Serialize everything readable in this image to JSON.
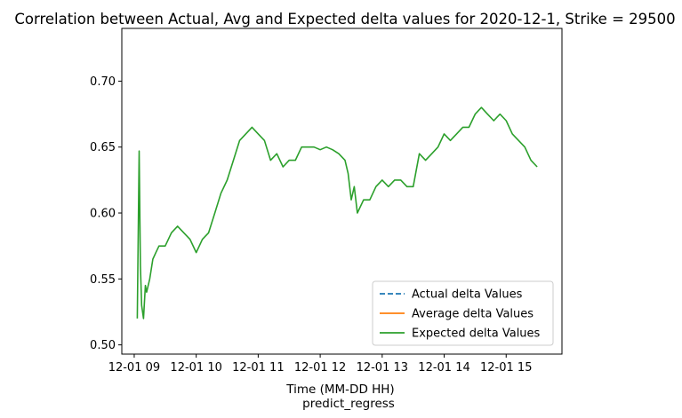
{
  "chart_data": {
    "type": "line",
    "title": "Correlation between Actual, Avg and Expected delta values for 2020-12-1, Strike = 29500",
    "xlabel": "Time (MM-DD HH)",
    "xlabel2": "predict_regress",
    "ylabel": "",
    "ylim": [
      0.493,
      0.74
    ],
    "xlim": [
      8.8,
      15.9
    ],
    "grid": false,
    "legend_position": "lower-right",
    "x_ticks": [
      {
        "value": 9,
        "label": "12-01 09"
      },
      {
        "value": 10,
        "label": "12-01 10"
      },
      {
        "value": 11,
        "label": "12-01 11"
      },
      {
        "value": 12,
        "label": "12-01 12"
      },
      {
        "value": 13,
        "label": "12-01 13"
      },
      {
        "value": 14,
        "label": "12-01 14"
      },
      {
        "value": 15,
        "label": "12-01 15"
      }
    ],
    "y_ticks": [
      {
        "value": 0.5,
        "label": "0.50"
      },
      {
        "value": 0.55,
        "label": "0.55"
      },
      {
        "value": 0.6,
        "label": "0.60"
      },
      {
        "value": 0.65,
        "label": "0.65"
      },
      {
        "value": 0.7,
        "label": "0.70"
      }
    ],
    "series": [
      {
        "name": "Actual delta Values",
        "color": "#1f77b4",
        "dash": true,
        "x": [],
        "y": []
      },
      {
        "name": "Average delta Values",
        "color": "#ff7f0e",
        "dash": false,
        "x": [],
        "y": []
      },
      {
        "name": "Expected delta Values",
        "color": "#2ca02c",
        "dash": false,
        "x": [
          9.05,
          9.08,
          9.1,
          9.12,
          9.15,
          9.18,
          9.2,
          9.25,
          9.3,
          9.35,
          9.4,
          9.5,
          9.6,
          9.7,
          9.8,
          9.9,
          10.0,
          10.1,
          10.2,
          10.3,
          10.4,
          10.5,
          10.6,
          10.7,
          10.8,
          10.9,
          11.0,
          11.1,
          11.2,
          11.3,
          11.4,
          11.5,
          11.6,
          11.7,
          11.8,
          11.9,
          12.0,
          12.1,
          12.2,
          12.3,
          12.4,
          12.45,
          12.5,
          12.55,
          12.6,
          12.7,
          12.8,
          12.9,
          13.0,
          13.1,
          13.2,
          13.3,
          13.4,
          13.5,
          13.6,
          13.7,
          13.8,
          13.9,
          14.0,
          14.1,
          14.2,
          14.3,
          14.4,
          14.5,
          14.6,
          14.7,
          14.8,
          14.9,
          15.0,
          15.1,
          15.2,
          15.3,
          15.4,
          15.5
        ],
        "y": [
          0.52,
          0.647,
          0.56,
          0.53,
          0.52,
          0.545,
          0.54,
          0.55,
          0.565,
          0.57,
          0.575,
          0.575,
          0.585,
          0.59,
          0.585,
          0.58,
          0.57,
          0.58,
          0.585,
          0.6,
          0.615,
          0.625,
          0.64,
          0.655,
          0.66,
          0.665,
          0.66,
          0.655,
          0.64,
          0.645,
          0.635,
          0.64,
          0.64,
          0.65,
          0.65,
          0.65,
          0.648,
          0.65,
          0.648,
          0.645,
          0.64,
          0.63,
          0.61,
          0.62,
          0.6,
          0.61,
          0.61,
          0.62,
          0.625,
          0.62,
          0.625,
          0.625,
          0.62,
          0.62,
          0.645,
          0.64,
          0.645,
          0.65,
          0.66,
          0.655,
          0.66,
          0.665,
          0.665,
          0.675,
          0.68,
          0.675,
          0.67,
          0.675,
          0.67,
          0.66,
          0.655,
          0.65,
          0.64,
          0.635
        ]
      }
    ]
  }
}
